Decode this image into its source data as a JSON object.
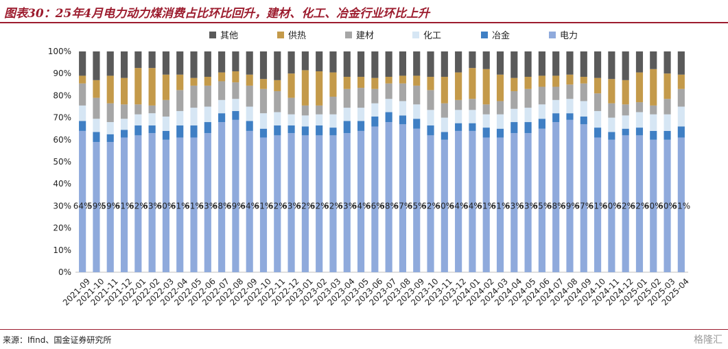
{
  "title": "图表30：25年4月电力动力煤消费占比环比回升，建材、化工、冶金行业环比上升",
  "source": "来源：Ifind、国金证券研究所",
  "watermark": "格隆汇",
  "colors": {
    "其他": "#5a5a5a",
    "供热": "#c49a4a",
    "建材": "#a6a6a6",
    "化工": "#d6e6f4",
    "冶金": "#3f7fc4",
    "电力": "#8faadc",
    "accent": "#9c1c2e"
  },
  "chart_data": {
    "type": "bar",
    "stacked": true,
    "normalized": true,
    "ylim": [
      0,
      100
    ],
    "yticks": [
      "0%",
      "10%",
      "20%",
      "30%",
      "40%",
      "50%",
      "60%",
      "70%",
      "80%",
      "90%",
      "100%"
    ],
    "legend": [
      "其他",
      "供热",
      "建材",
      "化工",
      "冶金",
      "电力"
    ],
    "legend_position": "top",
    "categories": [
      "2021-09",
      "2021-10",
      "2021-11",
      "2021-12",
      "2022-01",
      "2022-02",
      "2022-03",
      "2022-04",
      "2022-05",
      "2022-06",
      "2022-07",
      "2022-08",
      "2022-09",
      "2022-10",
      "2022-11",
      "2022-12",
      "2023-01",
      "2023-02",
      "2023-03",
      "2023-04",
      "2023-05",
      "2023-06",
      "2023-07",
      "2023-08",
      "2023-09",
      "2023-10",
      "2023-11",
      "2023-12",
      "2024-01",
      "2024-02",
      "2024-03",
      "2024-04",
      "2024-05",
      "2024-06",
      "2024-07",
      "2024-08",
      "2024-09",
      "2024-10",
      "2024-11",
      "2024-12",
      "2025-01",
      "2025-02",
      "2025-03",
      "2025-04"
    ],
    "series": [
      {
        "name": "电力",
        "values": [
          64,
          59,
          59,
          61,
          62,
          63,
          60,
          61,
          61,
          63,
          68,
          69,
          64,
          61,
          62,
          63,
          62,
          62,
          62,
          63,
          64,
          66,
          68,
          67,
          65,
          62,
          60,
          64,
          64,
          61,
          61,
          63,
          63,
          65,
          68,
          69,
          67,
          61,
          60,
          62,
          62,
          60,
          60,
          61
        ]
      },
      {
        "name": "冶金",
        "values": [
          4.5,
          4.5,
          3.5,
          3.5,
          4.5,
          3.5,
          4,
          5.5,
          5.5,
          5,
          4,
          4,
          4.5,
          4,
          4.5,
          3.5,
          4,
          4.5,
          3.5,
          5.5,
          4.5,
          4.5,
          4.5,
          4,
          4.5,
          4.5,
          3.5,
          3.5,
          3.5,
          4.5,
          4,
          5,
          5,
          4.5,
          4,
          3,
          3.5,
          4.5,
          3.5,
          3,
          3.5,
          4,
          4,
          5
        ]
      },
      {
        "name": "化工",
        "values": [
          7,
          6,
          5.5,
          5,
          5,
          5.5,
          6.5,
          6.5,
          8,
          7,
          6,
          5.5,
          6.5,
          7,
          6,
          5,
          5,
          5,
          6,
          6,
          6,
          6,
          6,
          6.5,
          6.5,
          7,
          6.5,
          6,
          6,
          6,
          6.5,
          6,
          6.5,
          6.5,
          6,
          6.5,
          7,
          7.5,
          6.5,
          6,
          7,
          7.5,
          7.5,
          9
        ]
      },
      {
        "name": "建材",
        "values": [
          10,
          9.5,
          8.5,
          6.5,
          4.5,
          3.5,
          7.5,
          9.5,
          10,
          9.5,
          8.5,
          7.5,
          9.5,
          11,
          9.5,
          7.5,
          4.5,
          4,
          8,
          8.5,
          9,
          6.5,
          7,
          8,
          8.5,
          9,
          6.5,
          4.5,
          5,
          4.5,
          6,
          8,
          8.5,
          8,
          6,
          6.5,
          8,
          8,
          6.5,
          5,
          4.5,
          4,
          7,
          8
        ]
      },
      {
        "name": "供热",
        "values": [
          3.5,
          8,
          12.5,
          12,
          16.5,
          17,
          11.5,
          7,
          3.5,
          4,
          4,
          5,
          5,
          4.5,
          5,
          11,
          16,
          15.5,
          11,
          5.5,
          5,
          5,
          3,
          3.5,
          4.5,
          6,
          12,
          12.5,
          14,
          16,
          12,
          6,
          5.5,
          5,
          5,
          4.5,
          3,
          7,
          11,
          11,
          13.5,
          16.5,
          11.5,
          6.5
        ]
      },
      {
        "name": "其他",
        "values": [
          11,
          13,
          11,
          12,
          7.5,
          7.5,
          10.5,
          10.5,
          12,
          11.5,
          9.5,
          9,
          10.5,
          12.5,
          13,
          10,
          8.5,
          9,
          9.5,
          11.5,
          11.5,
          12,
          11.5,
          11,
          11,
          11.5,
          11.5,
          9.5,
          7.5,
          8,
          10.5,
          12,
          11.5,
          11,
          11,
          10.5,
          11.5,
          12,
          12.5,
          13,
          9.5,
          8,
          10,
          10.5
        ]
      }
    ],
    "data_labels": [
      "64%",
      "59%",
      "59%",
      "61%",
      "62%",
      "63%",
      "60%",
      "61%",
      "61%",
      "63%",
      "68%",
      "69%",
      "64%",
      "61%",
      "62%",
      "63%",
      "62%",
      "62%",
      "62%",
      "63%",
      "64%",
      "66%",
      "68%",
      "67%",
      "65%",
      "62%",
      "60%",
      "64%",
      "64%",
      "61%",
      "61%",
      "63%",
      "63%",
      "65%",
      "68%",
      "69%",
      "67%",
      "61%",
      "60%",
      "62%",
      "62%",
      "60%",
      "60%",
      "61%"
    ]
  }
}
